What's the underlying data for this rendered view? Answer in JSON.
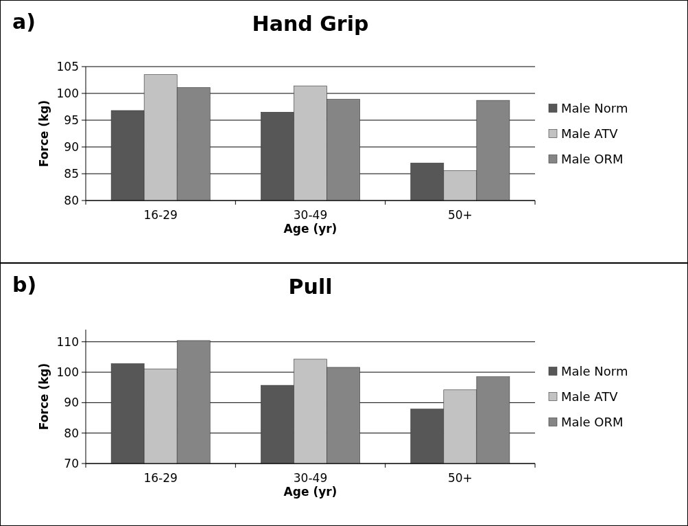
{
  "chart_data": [
    {
      "type": "bar",
      "title": "Hand Grip",
      "annotations": [
        "a)"
      ],
      "xlabel": "Age (yr)",
      "ylabel": "Force (kg)",
      "categories": [
        "16-29",
        "30-49",
        "50+"
      ],
      "series": [
        {
          "name": "Male Norm",
          "color": "#575757",
          "values": [
            96.8,
            96.5,
            87.0
          ]
        },
        {
          "name": "Male ATV",
          "color": "#c2c2c2",
          "values": [
            103.5,
            101.4,
            85.6
          ]
        },
        {
          "name": "Male ORM",
          "color": "#858585",
          "values": [
            101.1,
            98.9,
            98.7
          ]
        }
      ],
      "ylim": [
        80,
        105
      ],
      "yticks": [
        80,
        85,
        90,
        95,
        100,
        105
      ],
      "grid": "y",
      "legend": "right"
    },
    {
      "type": "bar",
      "title": "Pull",
      "annotations": [
        "b)"
      ],
      "xlabel": "Age (yr)",
      "ylabel": "Force (kg)",
      "categories": [
        "16-29",
        "30-49",
        "50+"
      ],
      "series": [
        {
          "name": "Male Norm",
          "color": "#575757",
          "values": [
            102.8,
            95.7,
            87.9
          ]
        },
        {
          "name": "Male ATV",
          "color": "#c2c2c2",
          "values": [
            101.1,
            104.3,
            94.2
          ]
        },
        {
          "name": "Male ORM",
          "color": "#858585",
          "values": [
            110.4,
            101.6,
            98.5
          ]
        }
      ],
      "ylim": [
        70,
        114
      ],
      "yticks": [
        70,
        80,
        90,
        100,
        110
      ],
      "grid": "y",
      "legend": "right"
    }
  ]
}
